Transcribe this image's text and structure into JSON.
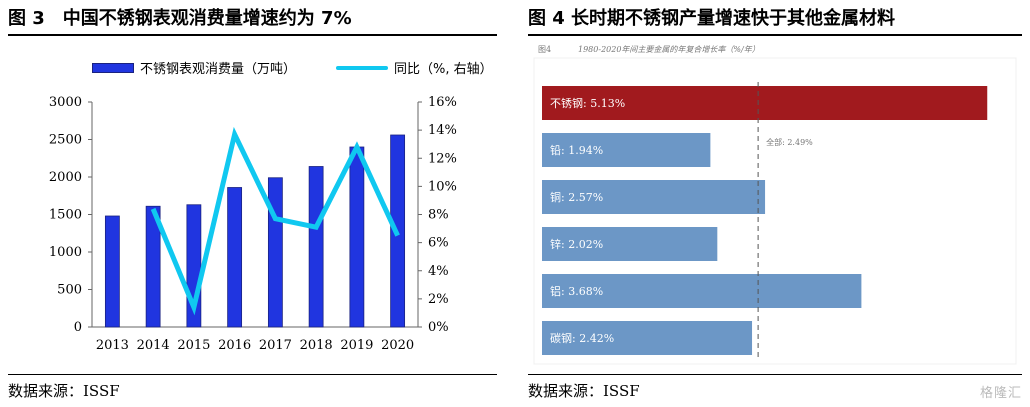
{
  "left": {
    "title": "图 3　中国不锈钢表观消费量增速约为 7%",
    "source": "数据来源：ISSF",
    "legend": {
      "bar": "不锈钢表观消费量（万吨）",
      "line": "同比（%, 右轴）"
    }
  },
  "right": {
    "title": "图 4  长时期不锈钢产量增速快于其他金属材料",
    "source": "数据来源：ISSF",
    "inner_fig": "图4",
    "inner_caption": "1980-2020年间主要金属的年复合增长率（%/年）",
    "ref_label": "全部: 2.49%",
    "watermark": "格隆汇"
  },
  "chart_data": [
    {
      "type": "bar",
      "categories": [
        "2013",
        "2014",
        "2015",
        "2016",
        "2017",
        "2018",
        "2019",
        "2020"
      ],
      "series": [
        {
          "name": "不锈钢表观消费量（万吨）",
          "type": "bar",
          "axis": "left",
          "values": [
            1480,
            1610,
            1630,
            1860,
            1990,
            2140,
            2400,
            2560
          ],
          "color": "#2035e0"
        },
        {
          "name": "同比（%, 右轴）",
          "type": "line",
          "axis": "right",
          "values": [
            null,
            8.4,
            1.4,
            13.7,
            7.7,
            7.1,
            12.8,
            6.5
          ],
          "color": "#10c8f0"
        }
      ],
      "ylim": [
        0,
        3000
      ],
      "yticks": [
        "0",
        "500",
        "1000",
        "1500",
        "2000",
        "2500",
        "3000"
      ],
      "y2lim": [
        0,
        16
      ],
      "y2ticks": [
        "0%",
        "2%",
        "4%",
        "6%",
        "8%",
        "10%",
        "12%",
        "14%",
        "16%"
      ],
      "legend": "top"
    },
    {
      "type": "bar",
      "orientation": "horizontal",
      "categories": [
        "不锈钢: 5.13%",
        "铅: 1.94%",
        "铜: 2.57%",
        "锌: 2.02%",
        "铝: 3.68%",
        "碳钢: 2.42%"
      ],
      "values": [
        5.13,
        1.94,
        2.57,
        2.02,
        3.68,
        2.42
      ],
      "colors": [
        "#a11a1e",
        "#6c97c6",
        "#6c97c6",
        "#6c97c6",
        "#6c97c6",
        "#6c97c6"
      ],
      "reference": {
        "value": 2.49,
        "label": "全部: 2.49%"
      },
      "xlim": [
        0,
        5.3
      ]
    }
  ]
}
